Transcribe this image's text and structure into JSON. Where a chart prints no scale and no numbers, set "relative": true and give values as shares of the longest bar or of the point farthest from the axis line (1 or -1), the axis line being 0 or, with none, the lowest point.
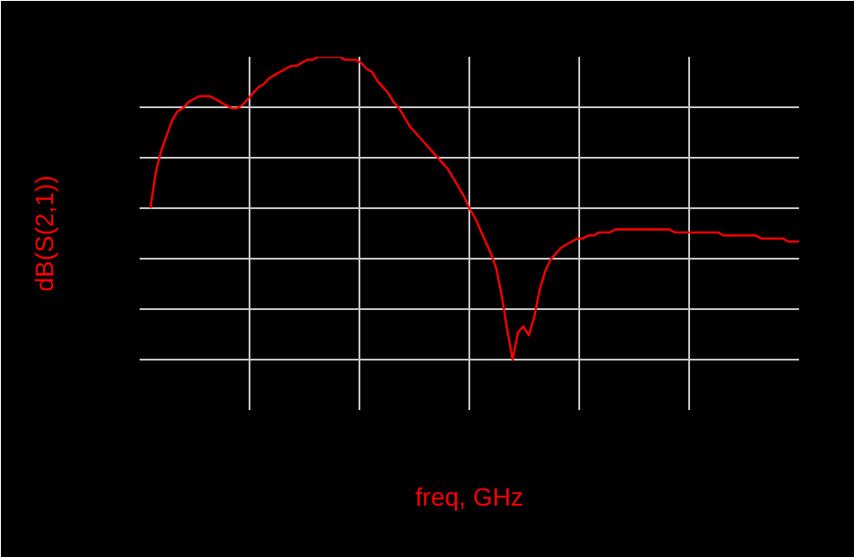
{
  "chart_data": {
    "type": "line",
    "relative": true,
    "xlabel": "freq, GHz",
    "ylabel": "dB(S(2,1))",
    "grid": true,
    "categories": [
      null,
      null,
      null,
      null,
      null,
      null,
      null,
      null,
      null,
      null,
      null,
      null,
      null,
      null,
      null,
      null,
      null,
      null,
      null,
      null,
      null,
      null,
      null,
      null,
      null,
      null,
      null,
      null,
      null,
      null,
      null,
      null,
      null,
      null,
      null,
      null,
      null,
      null,
      null,
      null,
      null,
      null,
      null,
      null,
      null,
      null,
      null,
      null,
      null,
      null,
      null,
      null,
      null,
      null,
      null,
      null,
      null,
      null,
      null,
      null,
      null,
      null,
      null,
      null,
      null,
      null,
      null,
      null,
      null,
      null,
      null,
      null,
      null,
      null,
      null,
      null,
      null,
      null,
      null,
      null,
      null,
      null,
      null,
      null,
      null,
      null,
      null,
      null,
      null,
      null,
      null,
      null,
      null,
      null,
      null,
      null,
      null,
      null,
      null,
      null,
      null,
      null,
      null,
      null,
      null,
      null,
      null,
      null,
      null,
      null,
      null,
      null,
      null,
      null,
      null,
      null,
      null,
      null,
      null,
      null,
      null
    ],
    "series": [
      {
        "color": "#ff0000",
        "values": [
          0.5,
          0.62,
          0.69,
          0.74,
          0.79,
          0.82,
          0.83,
          0.85,
          0.86,
          0.87,
          0.87,
          0.87,
          0.86,
          0.85,
          0.84,
          0.83,
          0.83,
          0.84,
          0.86,
          0.88,
          0.9,
          0.91,
          0.93,
          0.94,
          0.95,
          0.96,
          0.97,
          0.97,
          0.98,
          0.99,
          0.99,
          1.0,
          1,
          1,
          1,
          1.0,
          0.99,
          0.99,
          0.99,
          0.98,
          0.96,
          0.95,
          0.92,
          0.9,
          0.88,
          0.85,
          0.83,
          0.8,
          0.77,
          0.75,
          0.73,
          0.71,
          0.69,
          0.67,
          0.65,
          0.63,
          0.6,
          0.57,
          0.54,
          0.5,
          0.47,
          0.43,
          0.39,
          0.35,
          0.3,
          0.21,
          0.1,
          0,
          0.09,
          0.11,
          0.08,
          0.14,
          0.23,
          0.29,
          0.33,
          0.35,
          0.37,
          0.38,
          0.39,
          0.4,
          0.4,
          0.41,
          0.41,
          0.42,
          0.42,
          0.42,
          0.43,
          0.43,
          0.43,
          0.43,
          0.43,
          0.43,
          0.43,
          0.43,
          0.43,
          0.43,
          0.43,
          0.42,
          0.42,
          0.42,
          0.42,
          0.42,
          0.42,
          0.42,
          0.42,
          0.42,
          0.41,
          0.41,
          0.41,
          0.41,
          0.41,
          0.41,
          0.41,
          0.4,
          0.4,
          0.4,
          0.4,
          0.4,
          0.39,
          0.39,
          0.39
        ]
      }
    ]
  }
}
